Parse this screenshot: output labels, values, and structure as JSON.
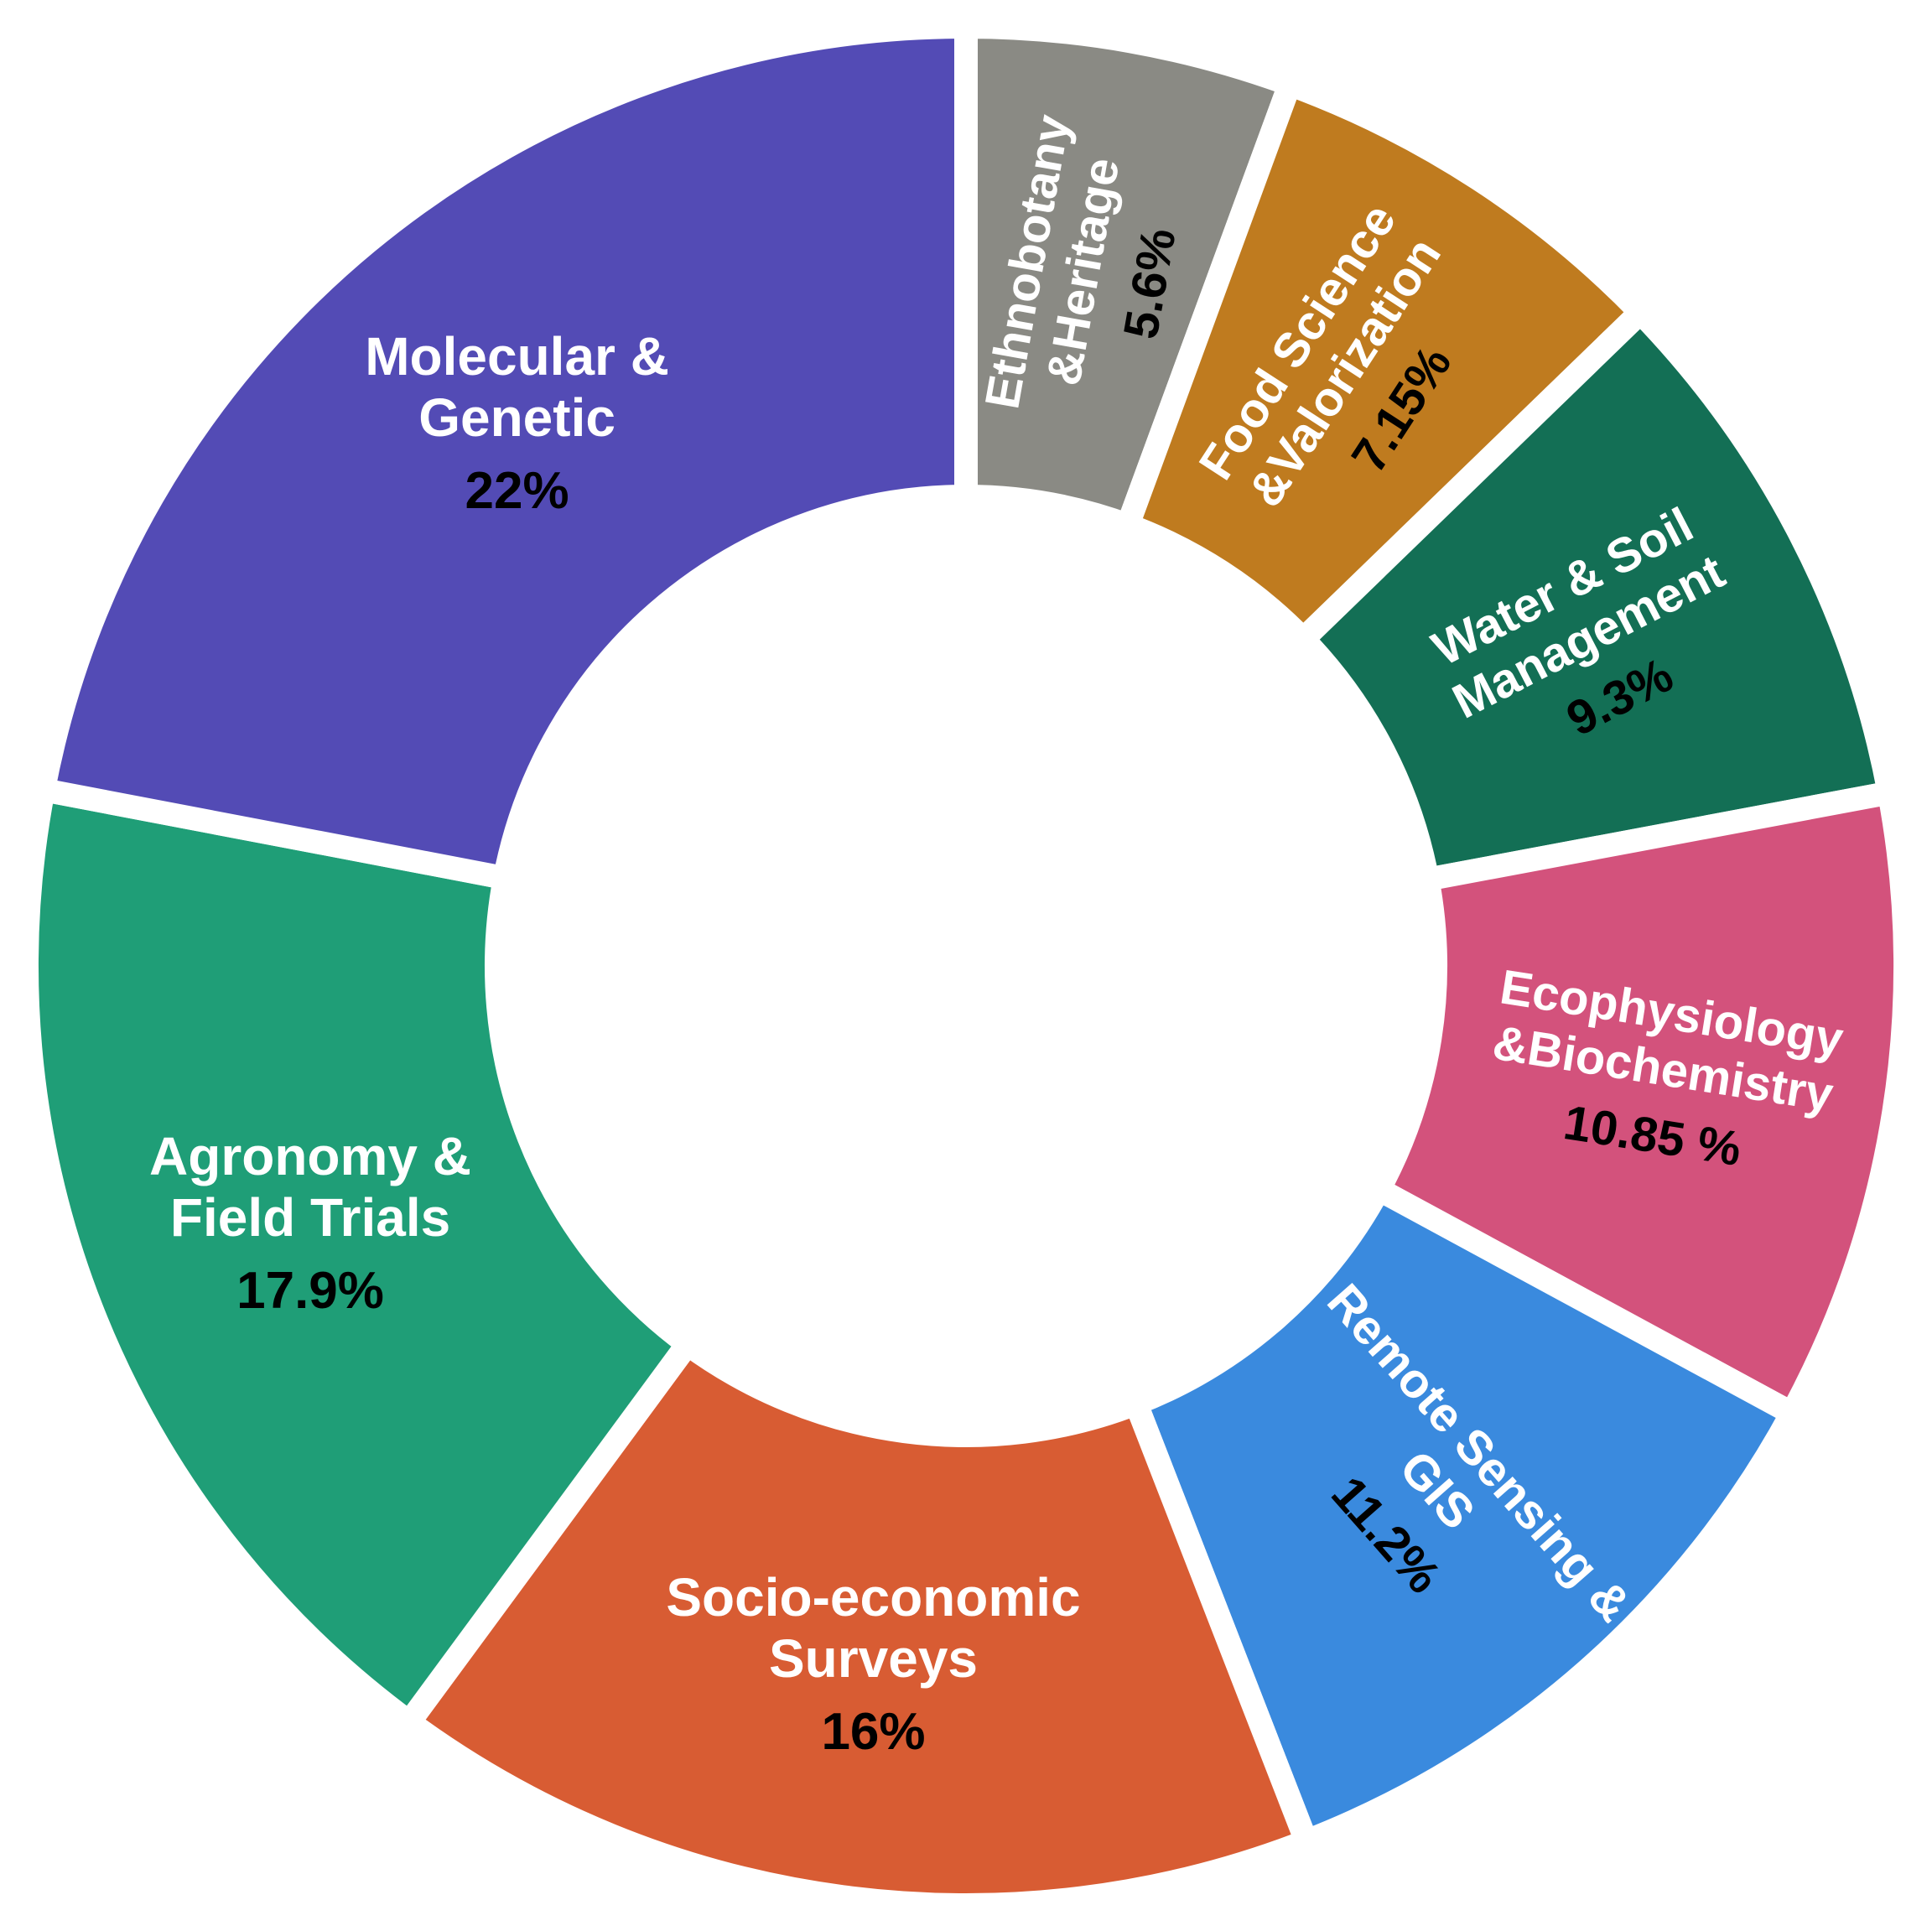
{
  "chart_data": {
    "type": "donut",
    "categories": [
      "Ethnobotany &Heritage",
      "Food Science &Valorization",
      "Water & Soil Management",
      "Ecophysiology &Biochemistry",
      "Remote Sensing & GIS",
      "Socio-economic Surveys",
      "Agronomy & Field Trials",
      "Molecular & Genetic"
    ],
    "values": [
      5.6,
      7.15,
      9.3,
      10.85,
      11.2,
      16,
      17.9,
      22
    ],
    "value_labels": [
      "5.6%",
      "7.15%",
      "9.3%",
      "10.85 %",
      "11.2%",
      "16%",
      "17.9%",
      "22%"
    ],
    "colors": [
      "#8a8a84",
      "#bf7b1f",
      "#136f55",
      "#d3527c",
      "#3a8ade",
      "#d85c33",
      "#1f9e77",
      "#534bb5"
    ]
  }
}
